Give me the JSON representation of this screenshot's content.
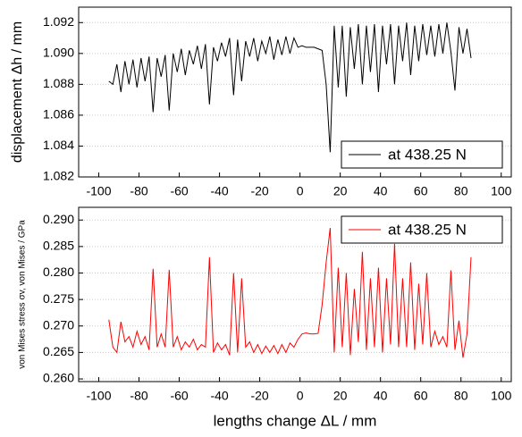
{
  "chart_data": [
    {
      "type": "line",
      "y_label": "displacement Δh / mm",
      "x": [
        -95,
        -93,
        -91,
        -89,
        -87,
        -85,
        -83,
        -81,
        -79,
        -77,
        -75,
        -73,
        -71,
        -69,
        -67,
        -65,
        -63,
        -61,
        -59,
        -57,
        -55,
        -53,
        -51,
        -49,
        -47,
        -45,
        -43,
        -41,
        -39,
        -37,
        -35,
        -33,
        -31,
        -29,
        -27,
        -25,
        -23,
        -21,
        -19,
        -17,
        -15,
        -13,
        -11,
        -9,
        -7,
        -5,
        -3,
        -1,
        1,
        3,
        5,
        7,
        9,
        11,
        13,
        15,
        17,
        19,
        21,
        23,
        25,
        27,
        29,
        31,
        33,
        35,
        37,
        39,
        41,
        43,
        45,
        47,
        49,
        51,
        53,
        55,
        57,
        59,
        61,
        63,
        65,
        67,
        69,
        71,
        73,
        75,
        77,
        79,
        81,
        83,
        85
      ],
      "series": [
        {
          "name": "at 438.25 N",
          "color": "#000000",
          "values": [
            1.0882,
            1.088,
            1.0893,
            1.0875,
            1.0895,
            1.088,
            1.0896,
            1.0878,
            1.0897,
            1.0882,
            1.0898,
            1.0862,
            1.0897,
            1.0885,
            1.0899,
            1.0863,
            1.09,
            1.0888,
            1.0903,
            1.0886,
            1.0902,
            1.0893,
            1.0905,
            1.089,
            1.0906,
            1.0867,
            1.0904,
            1.0895,
            1.0907,
            1.0898,
            1.091,
            1.0873,
            1.0909,
            1.0882,
            1.0908,
            1.0898,
            1.091,
            1.0895,
            1.0908,
            1.09,
            1.0911,
            1.0896,
            1.0909,
            1.0899,
            1.0911,
            1.09,
            1.091,
            1.0904,
            1.0905,
            1.0904,
            1.0904,
            1.0904,
            1.0903,
            1.0902,
            1.088,
            1.0836,
            1.0918,
            1.0878,
            1.0918,
            1.0872,
            1.0917,
            1.089,
            1.0919,
            1.088,
            1.0918,
            1.0888,
            1.0919,
            1.0875,
            1.0918,
            1.0893,
            1.0919,
            1.088,
            1.0918,
            1.0895,
            1.092,
            1.0886,
            1.0918,
            1.0895,
            1.0919,
            1.0899,
            1.0918,
            1.0898,
            1.0919,
            1.09,
            1.092,
            1.0901,
            1.0876,
            1.0917,
            1.09,
            1.0916,
            1.0897
          ]
        }
      ],
      "xlim": [
        -110,
        105
      ],
      "xticks": [
        -100,
        -80,
        -60,
        -40,
        -20,
        0,
        20,
        40,
        60,
        80,
        100
      ],
      "ylim": [
        1.082,
        1.093
      ],
      "yticks": [
        1.082,
        1.084,
        1.086,
        1.088,
        {
          "value": 1.09,
          "label": "1.090"
        },
        1.092
      ],
      "grid": true,
      "legend": "lower right"
    },
    {
      "type": "line",
      "x_label": "lengths change ΔL / mm",
      "y_label": "von Mises stress σv, von Mises / GPa",
      "x": [
        -95,
        -93,
        -91,
        -89,
        -87,
        -85,
        -83,
        -81,
        -79,
        -77,
        -75,
        -73,
        -71,
        -69,
        -67,
        -65,
        -63,
        -61,
        -59,
        -57,
        -55,
        -53,
        -51,
        -49,
        -47,
        -45,
        -43,
        -41,
        -39,
        -37,
        -35,
        -33,
        -31,
        -29,
        -27,
        -25,
        -23,
        -21,
        -19,
        -17,
        -15,
        -13,
        -11,
        -9,
        -7,
        -5,
        -3,
        -1,
        1,
        3,
        5,
        7,
        9,
        11,
        13,
        15,
        17,
        19,
        21,
        23,
        25,
        27,
        29,
        31,
        33,
        35,
        37,
        39,
        41,
        43,
        45,
        47,
        49,
        51,
        53,
        55,
        57,
        59,
        61,
        63,
        65,
        67,
        69,
        71,
        73,
        75,
        77,
        79,
        81,
        83,
        85
      ],
      "series": [
        {
          "name": "at 438.25 N",
          "color": "#ff0000",
          "values": [
            0.2712,
            0.266,
            0.265,
            0.2708,
            0.267,
            0.268,
            0.266,
            0.269,
            0.2665,
            0.268,
            0.2655,
            0.2808,
            0.266,
            0.2685,
            0.266,
            0.2806,
            0.266,
            0.268,
            0.2655,
            0.267,
            0.266,
            0.2675,
            0.2655,
            0.2665,
            0.266,
            0.283,
            0.265,
            0.2668,
            0.2655,
            0.2665,
            0.2645,
            0.28,
            0.265,
            0.279,
            0.266,
            0.267,
            0.265,
            0.2665,
            0.2648,
            0.2662,
            0.265,
            0.2663,
            0.2648,
            0.2665,
            0.265,
            0.2668,
            0.266,
            0.2675,
            0.2685,
            0.2687,
            0.2685,
            0.2685,
            0.2686,
            0.274,
            0.282,
            0.2885,
            0.265,
            0.281,
            0.266,
            0.28,
            0.2645,
            0.277,
            0.267,
            0.284,
            0.2655,
            0.279,
            0.266,
            0.281,
            0.265,
            0.279,
            0.2665,
            0.2855,
            0.266,
            0.279,
            0.266,
            0.282,
            0.2655,
            0.278,
            0.2665,
            0.28,
            0.266,
            0.269,
            0.2665,
            0.268,
            0.266,
            0.2805,
            0.2655,
            0.271,
            0.264,
            0.2685,
            0.283
          ]
        }
      ],
      "xlim": [
        -110,
        105
      ],
      "xticks": [
        -100,
        -80,
        -60,
        -40,
        -20,
        0,
        20,
        40,
        60,
        80,
        100
      ],
      "ylim": [
        0.2595,
        0.2924
      ],
      "yticks": [
        {
          "value": 0.26,
          "label": "0.260"
        },
        0.265,
        {
          "value": 0.27,
          "label": "0.270"
        },
        0.275,
        {
          "value": 0.28,
          "label": "0.280"
        },
        0.285,
        {
          "value": 0.29,
          "label": "0.290"
        }
      ],
      "grid": true,
      "legend": "upper right"
    }
  ]
}
